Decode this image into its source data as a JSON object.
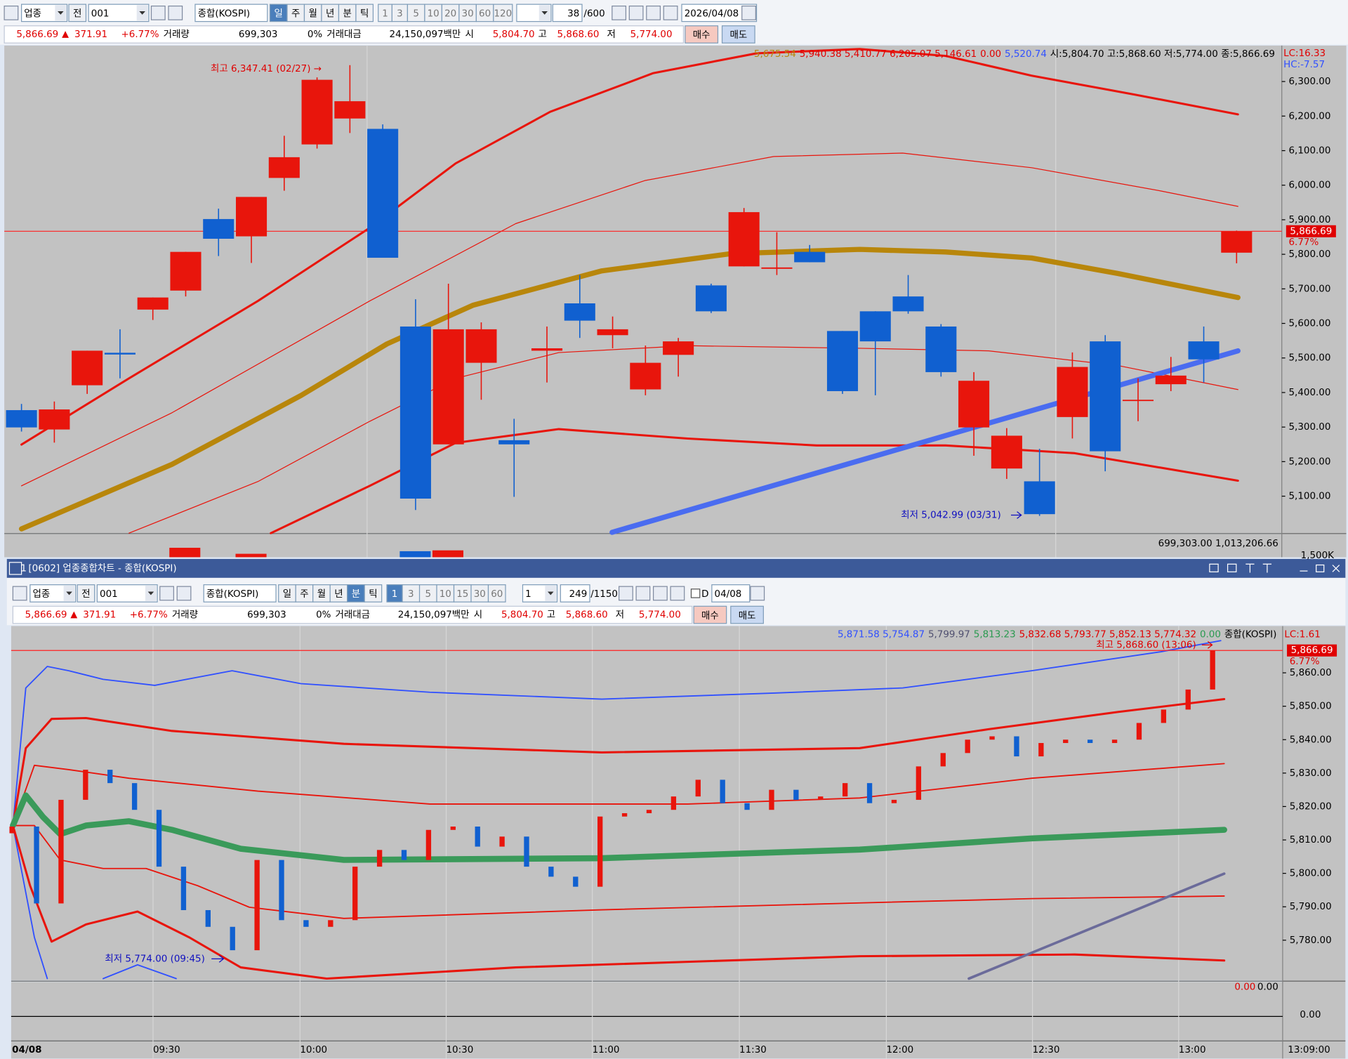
{
  "top_window": {
    "toolbar": {
      "market": "업종",
      "prev": "전",
      "code": "001",
      "name": "종합(KOSPI)",
      "periods": [
        "일",
        "주",
        "월",
        "년",
        "분",
        "틱"
      ],
      "intervals": [
        "1",
        "3",
        "5",
        "10",
        "20",
        "30",
        "60",
        "120"
      ],
      "count": "38",
      "count_max": "/600",
      "date": "2026/04/08"
    },
    "quote": {
      "price": "5,866.69",
      "change": "371.91",
      "change_pct": "+6.77%",
      "volume_label": "거래량",
      "volume": "699,303",
      "volume_pct": "0%",
      "amount_label": "거래대금",
      "amount": "24,150,097백만",
      "open_label": "시",
      "open": "5,804.70",
      "high_label": "고",
      "high": "5,868.60",
      "low_label": "저",
      "low": "5,774.00",
      "buy": "매수",
      "sell": "매도"
    },
    "chart": {
      "type": "candlestick",
      "legend": [
        {
          "text": "5,675.54",
          "color": "#b8860b"
        },
        {
          "text": "5,940.38 5,410.77 6,205.07 5,146.61",
          "color": "#e00000"
        },
        {
          "text": "0.00",
          "color": "#e00000"
        },
        {
          "text": "5,520.74",
          "color": "#3050ff"
        },
        {
          "text": "시:5,804.70 고:5,868.60 저:5,774.00 종:5,866.69",
          "color": "#000000"
        }
      ],
      "lc": "LC:16.33",
      "hc": "HC:-7.57",
      "max_label": "최고 6,347.41 (02/27) →",
      "min_label": "최저 5,042.99 (03/31)",
      "current": "5,866.69",
      "current_pct": "6.77%",
      "volume_info": "699,303.00 1,013,206.66",
      "volume_axis": "1,500K",
      "up_color": "#e8150c",
      "down_color": "#1060d0",
      "ylim": [
        4993,
        6404
      ],
      "yticks": [
        {
          "value": 5100,
          "label": "5,100.00"
        },
        {
          "value": 5200,
          "label": "5,200.00"
        },
        {
          "value": 5300,
          "label": "5,300.00"
        },
        {
          "value": 5400,
          "label": "5,400.00"
        },
        {
          "value": 5500,
          "label": "5,500.00"
        },
        {
          "value": 5600,
          "label": "5,600.00"
        },
        {
          "value": 5700,
          "label": "5,700.00"
        },
        {
          "value": 5800,
          "label": "5,800.00"
        },
        {
          "value": 5900,
          "label": "5,900.00"
        },
        {
          "value": 6000,
          "label": "6,000.00"
        },
        {
          "value": 6100,
          "label": "6,100.00"
        },
        {
          "value": 6200,
          "label": "6,200.00"
        },
        {
          "value": 6300,
          "label": "6,300.00"
        }
      ],
      "open": [
        5349,
        5293,
        5421,
        5515,
        5640,
        5695,
        5902,
        5852,
        6021,
        6118,
        6193,
        6163,
        5591,
        5250,
        5486,
        5262,
        5521,
        5658,
        5566,
        5409,
        5509,
        5710,
        5765,
        5758,
        5807,
        5578,
        5635,
        5678,
        5591,
        5299,
        5180,
        5143,
        5329,
        5548,
        5376,
        5424,
        5548,
        5804.7
      ],
      "high": [
        5367,
        5374,
        5521,
        5583,
        5675,
        5807,
        5932,
        5966,
        6143,
        6312,
        6347.41,
        6176,
        5670,
        5715,
        5603,
        5324,
        5591,
        5740,
        5620,
        5536,
        5558,
        5715,
        5934,
        5864,
        5827,
        5578,
        5635,
        5740,
        5598,
        5459,
        5297,
        5237,
        5516,
        5566,
        5441,
        5503,
        5591,
        5868.6
      ],
      "low": [
        5287,
        5255,
        5396,
        5441,
        5610,
        5678,
        5795,
        5775,
        5984,
        6106,
        6151,
        5790,
        5060,
        5250,
        5379,
        5098,
        5429,
        5558,
        5528,
        5392,
        5446,
        5630,
        5765,
        5740,
        5777,
        5396,
        5392,
        5628,
        5446,
        5217,
        5150,
        5042.99,
        5267,
        5172,
        5317,
        5404,
        5429,
        5774.0
      ],
      "close": [
        5299,
        5351,
        5521,
        5510,
        5675,
        5807,
        5845,
        5966,
        6081,
        6305,
        6243,
        5790,
        5093,
        5583,
        5583,
        5250,
        5528,
        5608,
        5583,
        5486,
        5548,
        5635,
        5922,
        5762,
        5777,
        5404,
        5548,
        5635,
        5459,
        5434,
        5275,
        5048,
        5474,
        5230,
        5379,
        5449,
        5496,
        5866.69
      ]
    }
  },
  "bottom_window": {
    "window_no": "1",
    "title": "[0602] 업종종합차트 - 종합(KOSPI)",
    "toolbar": {
      "market": "업종",
      "prev": "전",
      "code": "001",
      "name": "종합(KOSPI)",
      "periods": [
        "일",
        "주",
        "월",
        "년",
        "분",
        "틱"
      ],
      "intervals": [
        "1",
        "3",
        "5",
        "10",
        "15",
        "30",
        "60"
      ],
      "unit": "1",
      "count": "249",
      "count_max": "/1150",
      "check": "D",
      "date": "04/08"
    },
    "quote": {
      "price": "5,866.69",
      "change": "371.91",
      "change_pct": "+6.77%",
      "volume_label": "거래량",
      "volume": "699,303",
      "volume_pct": "0%",
      "amount_label": "거래대금",
      "amount": "24,150,097백만",
      "open_label": "시",
      "open": "5,804.70",
      "high_label": "고",
      "high": "5,868.60",
      "low_label": "저",
      "low": "5,774.00",
      "buy": "매수",
      "sell": "매도"
    },
    "chart": {
      "type": "candlestick",
      "legend": [
        {
          "text": "5,871.58 5,754.87",
          "color": "#3050ff"
        },
        {
          "text": "5,799.97",
          "color": "#505070"
        },
        {
          "text": "5,813.23",
          "color": "#2a9a50"
        },
        {
          "text": "5,832.68 5,793.77 5,852.13 5,774.32",
          "color": "#e00000"
        },
        {
          "text": "0.00",
          "color": "#2a9a50"
        },
        {
          "text": "종합(KOSPI)",
          "color": "#000000"
        }
      ],
      "lc": "LC:1.61",
      "max_label": "최고 5,868.60 (13:06)",
      "min_label": "최저 5,774.00 (09:45)",
      "current": "5,866.69",
      "current_pct": "6.77%",
      "up_color": "#e8150c",
      "down_color": "#1060d0",
      "ylim": [
        5768,
        5874
      ],
      "yticks": [
        {
          "value": 5780,
          "label": "5,780.00"
        },
        {
          "value": 5790,
          "label": "5,790.00"
        },
        {
          "value": 5800,
          "label": "5,800.00"
        },
        {
          "value": 5810,
          "label": "5,810.00"
        },
        {
          "value": 5820,
          "label": "5,820.00"
        },
        {
          "value": 5830,
          "label": "5,830.00"
        },
        {
          "value": 5840,
          "label": "5,840.00"
        },
        {
          "value": 5850,
          "label": "5,850.00"
        },
        {
          "value": 5860,
          "label": "5,860.00"
        }
      ],
      "open": [
        5812,
        5814,
        5791,
        5822,
        5831,
        5827,
        5819,
        5802,
        5789,
        5784,
        5777,
        5804,
        5786,
        5784,
        5786,
        5802,
        5807,
        5804,
        5813,
        5814,
        5808,
        5811,
        5802,
        5799,
        5796,
        5817,
        5818,
        5819,
        5823,
        5828,
        5821,
        5819,
        5825,
        5822,
        5823,
        5827,
        5821,
        5822,
        5832,
        5836,
        5840,
        5841,
        5835,
        5839,
        5840,
        5839,
        5840,
        5845,
        5849,
        5855
      ],
      "close": [
        5814,
        5791,
        5822,
        5831,
        5827,
        5819,
        5802,
        5789,
        5784,
        5777,
        5804,
        5786,
        5784,
        5786,
        5802,
        5807,
        5804,
        5813,
        5814,
        5808,
        5811,
        5802,
        5799,
        5796,
        5817,
        5818,
        5819,
        5823,
        5828,
        5821,
        5819,
        5825,
        5822,
        5823,
        5827,
        5821,
        5822,
        5832,
        5836,
        5840,
        5841,
        5835,
        5839,
        5840,
        5839,
        5840,
        5845,
        5849,
        5855,
        5866.69
      ],
      "sub_legend": [
        "0.00",
        "0.00"
      ],
      "sub_tick": "0.00",
      "time_labels": [
        "04/08",
        "09:30",
        "10:00",
        "10:30",
        "11:00",
        "11:30",
        "12:00",
        "12:30",
        "13:00",
        "13:09:00"
      ]
    }
  }
}
